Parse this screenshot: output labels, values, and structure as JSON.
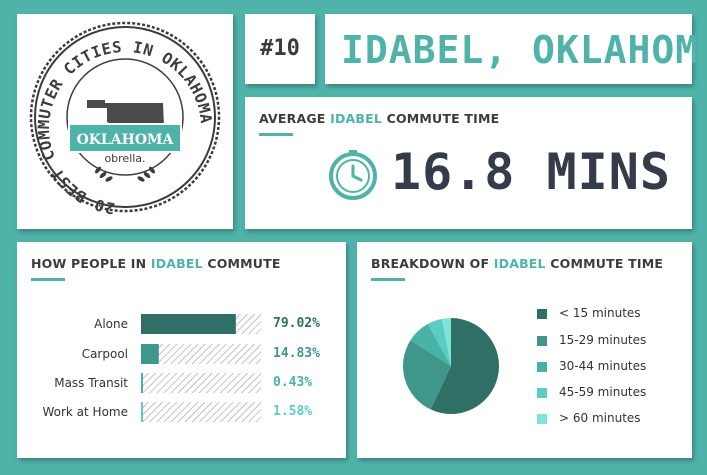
{
  "badge": {
    "ring_text": "20 BEST COMMUTER CITIES IN OKLAHOMA",
    "state": "OKLAHOMA",
    "brand": "obrella."
  },
  "rank": "#10",
  "city": "IDABEL, OKLAHOMA",
  "average": {
    "title_pre": "AVERAGE ",
    "title_hl": "IDABEL",
    "title_post": " COMMUTE TIME",
    "value": "16.8 MINS",
    "icon": "clock-icon"
  },
  "colors": {
    "teal": "#4fb3aa",
    "dark": "#333c48",
    "slice1": "#2f6f65",
    "slice2": "#3f968b",
    "slice3": "#47b2a6",
    "slice4": "#5cccc2",
    "slice5": "#7ee3db"
  },
  "modes": {
    "title_pre": "HOW PEOPLE IN ",
    "title_hl": "IDABEL",
    "title_post": " COMMUTE"
  },
  "breakdown": {
    "title_pre": "BREAKDOWN OF ",
    "title_hl": "IDABEL",
    "title_post": " COMMUTE TIME"
  },
  "chart_data": [
    {
      "type": "bar",
      "orientation": "horizontal",
      "categories": [
        "Alone",
        "Carpool",
        "Mass Transit",
        "Work at Home"
      ],
      "values": [
        79.02,
        14.83,
        0.43,
        1.58
      ],
      "labels": [
        "79.02%",
        "14.83%",
        "0.43%",
        "1.58%"
      ],
      "xlim": [
        0,
        100
      ],
      "bar_colors": [
        "#2f6f65",
        "#3f968b",
        "#47b2a6",
        "#5cccc2"
      ]
    },
    {
      "type": "pie",
      "categories": [
        "< 15 minutes",
        "15-29 minutes",
        "30-44 minutes",
        "45-59 minutes",
        "> 60 minutes"
      ],
      "values": [
        57,
        27,
        8,
        5,
        3
      ],
      "colors": [
        "#2f6f65",
        "#3f968b",
        "#47b2a6",
        "#5cccc2",
        "#7ee3db"
      ],
      "legend": "right"
    }
  ]
}
